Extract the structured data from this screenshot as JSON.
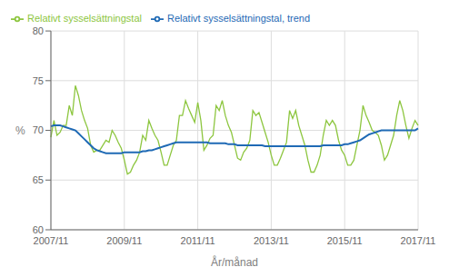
{
  "chart_data": {
    "type": "line",
    "xlabel": "År/månad",
    "ylabel": "%",
    "categories": [
      "2007/11",
      null,
      null,
      null,
      null,
      null,
      null,
      null,
      null,
      null,
      null,
      null,
      null,
      null,
      null,
      null,
      null,
      null,
      null,
      null,
      null,
      null,
      null,
      null,
      "2009/11",
      null,
      null,
      null,
      null,
      null,
      null,
      null,
      null,
      null,
      null,
      null,
      null,
      null,
      null,
      null,
      null,
      null,
      null,
      null,
      null,
      null,
      null,
      null,
      "2011/11",
      null,
      null,
      null,
      null,
      null,
      null,
      null,
      null,
      null,
      null,
      null,
      null,
      null,
      null,
      null,
      null,
      null,
      null,
      null,
      null,
      null,
      null,
      null,
      "2013/11",
      null,
      null,
      null,
      null,
      null,
      null,
      null,
      null,
      null,
      null,
      null,
      null,
      null,
      null,
      null,
      null,
      null,
      null,
      null,
      null,
      null,
      null,
      null,
      "2015/11",
      null,
      null,
      null,
      null,
      null,
      null,
      null,
      null,
      null,
      null,
      null,
      null,
      null,
      null,
      null,
      null,
      null,
      null,
      null,
      null,
      null,
      null,
      null,
      "2017/11"
    ],
    "series": [
      {
        "name": "Relativt sysselsättningstal",
        "color": "#8dc63f",
        "values": [
          69.3,
          71.0,
          69.5,
          69.8,
          70.5,
          70.5,
          72.5,
          71.5,
          74.5,
          73.5,
          72.0,
          71.0,
          70.2,
          68.5,
          67.8,
          68.0,
          68.0,
          68.5,
          69.0,
          68.8,
          70.0,
          69.5,
          68.8,
          68.2,
          67.0,
          65.6,
          65.8,
          66.5,
          67.0,
          67.8,
          69.5,
          69.0,
          71.0,
          70.2,
          69.5,
          69.0,
          67.8,
          66.5,
          66.5,
          67.5,
          68.5,
          69.0,
          71.5,
          71.5,
          73.0,
          72.2,
          71.5,
          70.8,
          72.8,
          71.0,
          68.0,
          68.5,
          69.2,
          69.5,
          72.5,
          72.0,
          73.0,
          71.5,
          70.5,
          69.8,
          68.5,
          67.2,
          67.0,
          67.8,
          68.2,
          69.0,
          72.0,
          71.5,
          71.8,
          70.8,
          69.8,
          68.8,
          67.5,
          66.5,
          66.5,
          67.2,
          68.0,
          68.8,
          72.0,
          71.2,
          72.0,
          70.5,
          69.5,
          68.5,
          67.0,
          65.8,
          65.8,
          66.5,
          67.5,
          69.5,
          71.0,
          70.5,
          71.0,
          70.5,
          69.0,
          68.0,
          67.5,
          66.5,
          66.5,
          67.0,
          68.5,
          70.0,
          72.5,
          71.5,
          70.8,
          70.0,
          69.8,
          69.5,
          68.5,
          67.0,
          67.5,
          68.5,
          69.5,
          71.5,
          73.0,
          72.0,
          70.5,
          69.2,
          70.2,
          71.0,
          70.5
        ]
      },
      {
        "name": "Relativt sysselsättningstal, trend",
        "color": "#1f6ab5",
        "values": [
          70.4,
          70.5,
          70.5,
          70.5,
          70.4,
          70.3,
          70.2,
          70.1,
          70.0,
          69.7,
          69.4,
          69.1,
          68.8,
          68.5,
          68.2,
          68.0,
          67.9,
          67.8,
          67.7,
          67.7,
          67.7,
          67.7,
          67.7,
          67.7,
          67.8,
          67.8,
          67.8,
          67.8,
          67.8,
          67.8,
          67.9,
          67.9,
          68.0,
          68.0,
          68.1,
          68.2,
          68.3,
          68.4,
          68.5,
          68.6,
          68.7,
          68.8,
          68.8,
          68.8,
          68.8,
          68.8,
          68.8,
          68.8,
          68.8,
          68.8,
          68.8,
          68.8,
          68.7,
          68.7,
          68.7,
          68.7,
          68.7,
          68.7,
          68.6,
          68.6,
          68.6,
          68.5,
          68.5,
          68.5,
          68.5,
          68.5,
          68.5,
          68.5,
          68.5,
          68.5,
          68.4,
          68.4,
          68.4,
          68.4,
          68.4,
          68.4,
          68.4,
          68.4,
          68.4,
          68.4,
          68.4,
          68.4,
          68.4,
          68.4,
          68.4,
          68.4,
          68.4,
          68.4,
          68.4,
          68.5,
          68.5,
          68.5,
          68.5,
          68.5,
          68.5,
          68.5,
          68.6,
          68.6,
          68.7,
          68.8,
          68.9,
          69.0,
          69.2,
          69.4,
          69.6,
          69.7,
          69.8,
          69.9,
          70.0,
          70.0,
          70.0,
          70.0,
          70.0,
          70.0,
          70.0,
          70.0,
          70.0,
          70.0,
          70.0,
          70.0,
          70.2
        ]
      }
    ],
    "ylim": [
      60,
      80
    ],
    "yticks": [
      60,
      65,
      70,
      75,
      80
    ],
    "grid": true,
    "legend": "upper left"
  }
}
